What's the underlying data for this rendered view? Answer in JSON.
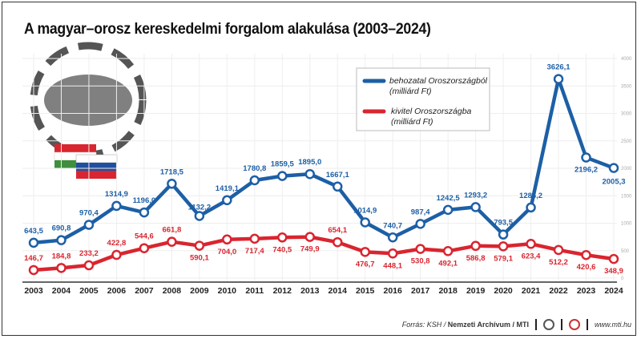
{
  "title": "A magyar–orosz kereskedelmi forgalom alakulása (2003–2024)",
  "footer": {
    "source_prefix": "Forrás: KSH / ",
    "source_bold": "Nemzeti Archívum / MTI",
    "url": "www.mti.hu"
  },
  "chart_data": {
    "type": "line",
    "title": "A magyar–orosz kereskedelmi forgalom alakulása (2003–2024)",
    "categories": [
      "2003",
      "2004",
      "2005",
      "2006",
      "2007",
      "2008",
      "2009",
      "2010",
      "2011",
      "2012",
      "2013",
      "2014",
      "2015",
      "2016",
      "2017",
      "2018",
      "2019",
      "2020",
      "2021",
      "2022",
      "2023",
      "2024"
    ],
    "series": [
      {
        "name": "behozatal Oroszországból (milliárd Ft)",
        "name_line1": "behozatal Oroszországból",
        "name_line2": "(milliárd Ft)",
        "color": "#1d5fa6",
        "values": [
          643.5,
          690.8,
          970.4,
          1314.9,
          1196.0,
          1718.5,
          1132.2,
          1419.1,
          1780.8,
          1859.5,
          1895.0,
          1667.1,
          1014.9,
          740.7,
          987.4,
          1242.5,
          1293.2,
          793.5,
          1286.2,
          3626.1,
          2196.2,
          2005.3
        ],
        "labels": [
          "643,5",
          "690,8",
          "970,4",
          "1314,9",
          "1196,0",
          "1718,5",
          "1132,2",
          "1419,1",
          "1780,8",
          "1859,5",
          "1895,0",
          "1667,1",
          "1014,9",
          "740,7",
          "987,4",
          "1242,5",
          "1293,2",
          "793,5",
          "1286,2",
          "3626,1",
          "2196,2",
          "2005,3"
        ]
      },
      {
        "name": "kivitel Oroszországba (milliárd Ft)",
        "name_line1": "kivitel Oroszországba",
        "name_line2": "(milliárd Ft)",
        "color": "#d9252f",
        "values": [
          146.7,
          184.8,
          233.2,
          422.8,
          544.6,
          661.8,
          590.1,
          704.0,
          717.4,
          740.5,
          749.9,
          654.1,
          476.7,
          448.1,
          530.8,
          492.1,
          586.8,
          579.1,
          623.4,
          512.2,
          420.6,
          348.9
        ],
        "labels": [
          "146,7",
          "184,8",
          "233,2",
          "422,8",
          "544,6",
          "661,8",
          "590,1",
          "704,0",
          "717,4",
          "740,5",
          "749,9",
          "654,1",
          "476,7",
          "448,1",
          "530,8",
          "492,1",
          "586,8",
          "579,1",
          "623,4",
          "512,2",
          "420,6",
          "348,9"
        ]
      }
    ],
    "ylim": [
      0,
      4000
    ],
    "yticks": [
      "0",
      "500",
      "1000",
      "1500",
      "2000",
      "2500",
      "3000",
      "3500",
      "4000"
    ],
    "y_axis_side": "right",
    "grid": true,
    "legend": "top-right"
  }
}
